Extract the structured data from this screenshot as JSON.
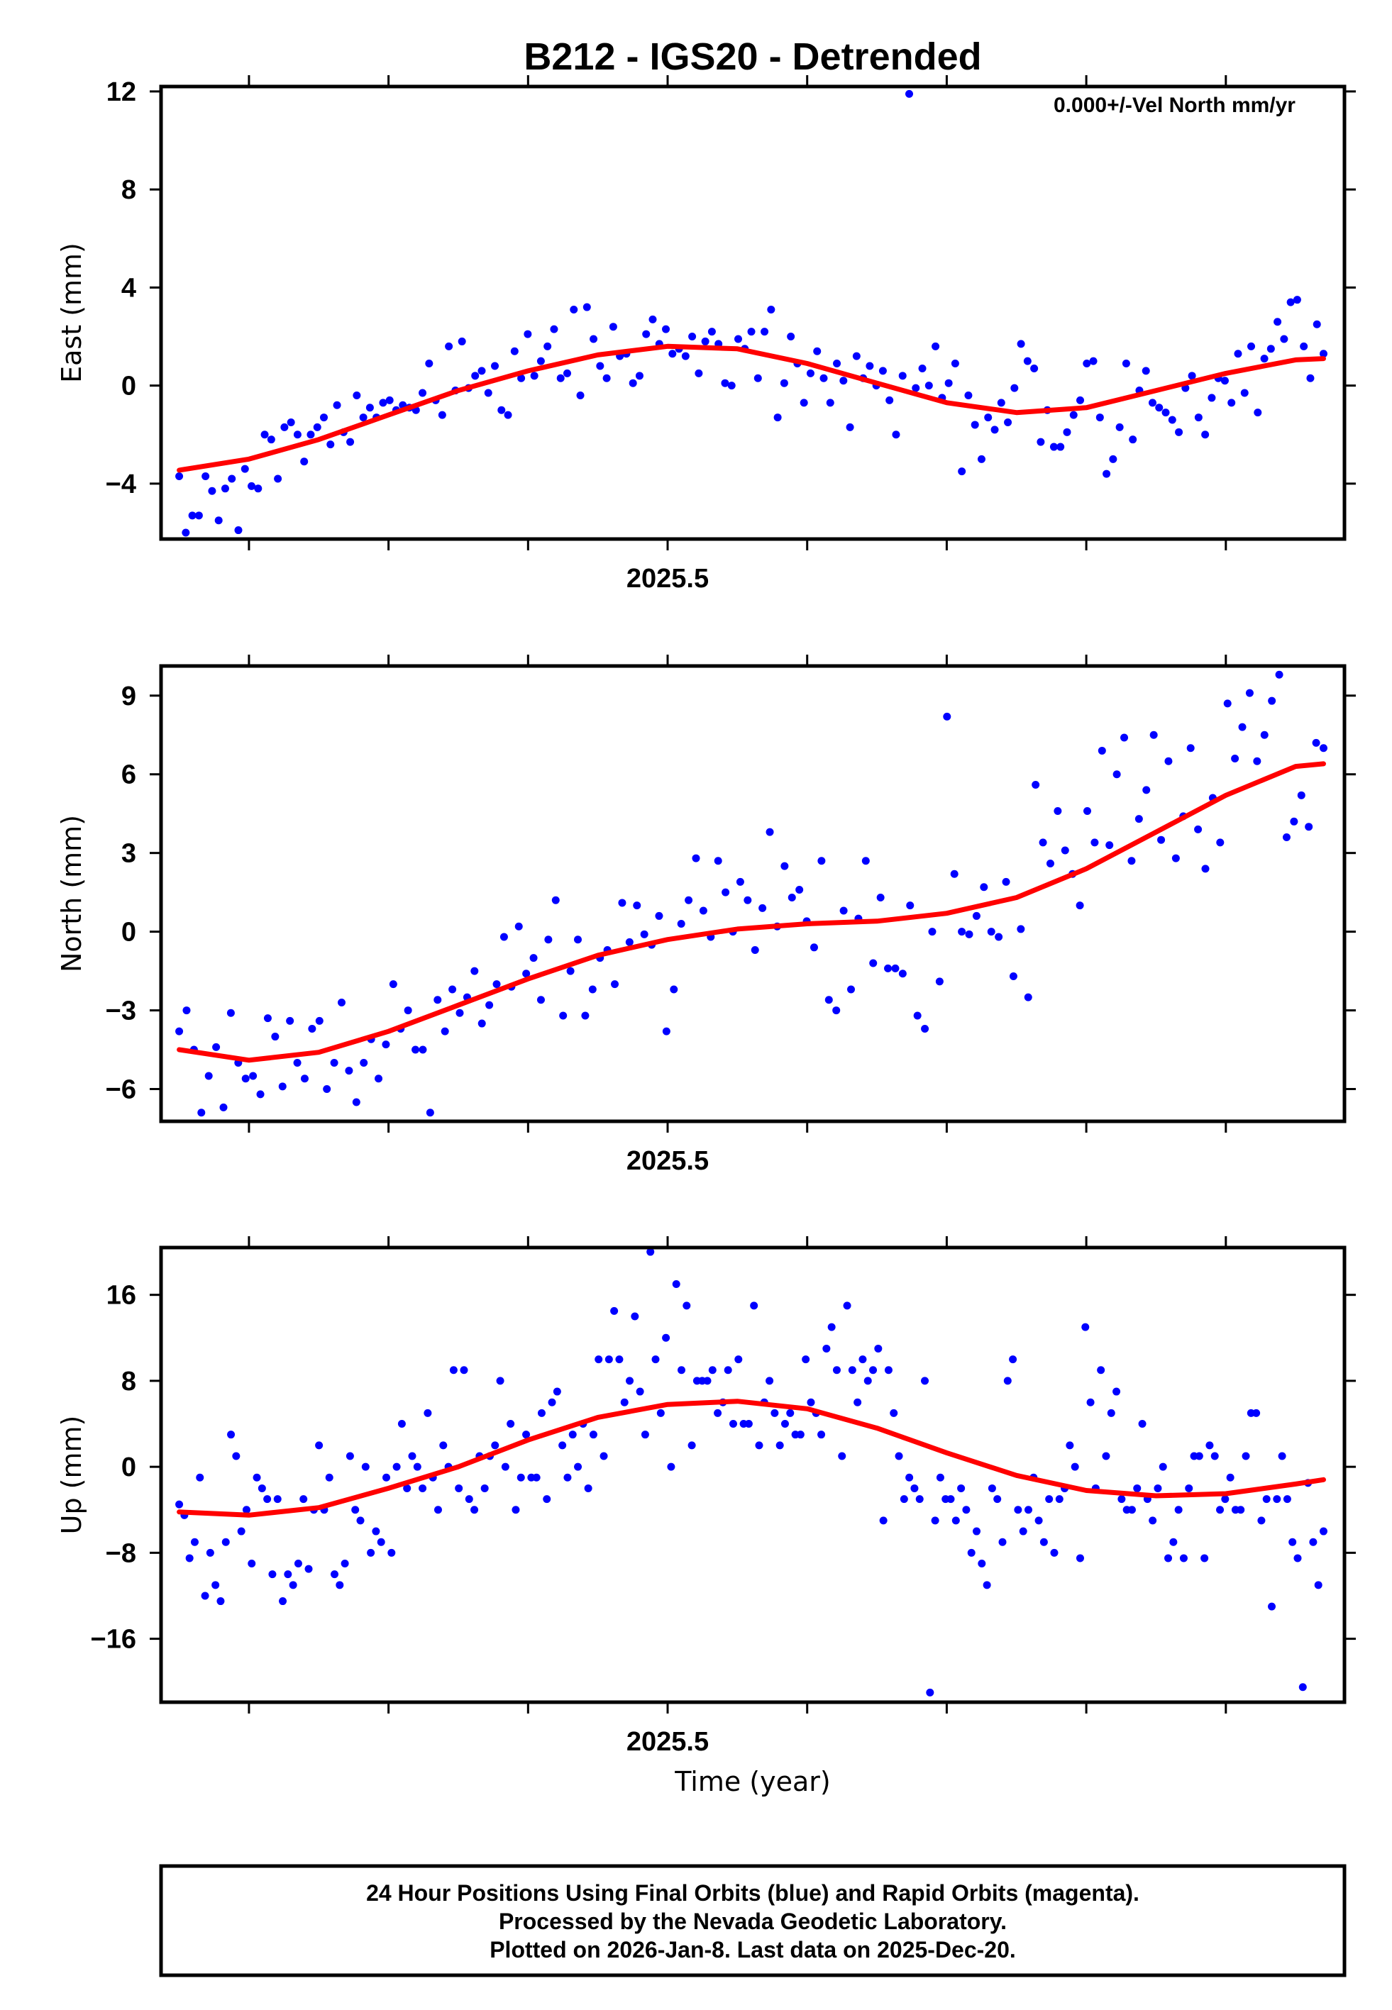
{
  "title": "B212 - IGS20 - Detrended",
  "annotation": "0.000+/-Vel North mm/yr",
  "xlabel": "Time (year)",
  "footer": {
    "line1": "24 Hour Positions Using Final Orbits (blue) and Rapid Orbits (magenta).",
    "line2": "Processed by the Nevada Geodetic Laboratory.",
    "line3": "Plotted on 2026-Jan-8. Last data on 2025-Dec-20."
  },
  "colors": {
    "points": "#0000ff",
    "model": "#ff0000",
    "frame": "#000000"
  },
  "chart_data": [
    {
      "type": "scatter",
      "name": "east",
      "ylabel": "East (mm)",
      "xlim": [
        2025.137,
        2025.985
      ],
      "ylim": [
        -6.26,
        12.2
      ],
      "xticks": [
        2025.2,
        2025.3,
        2025.4,
        2025.5,
        2025.6,
        2025.7,
        2025.8,
        2025.9
      ],
      "xtick_labels": [
        {
          "value": 2025.5,
          "label": "2025.5"
        }
      ],
      "yticks": [
        {
          "value": 12,
          "label": "12"
        },
        {
          "value": 8,
          "label": "8"
        },
        {
          "value": 4,
          "label": "4"
        },
        {
          "value": 0,
          "label": "0"
        },
        {
          "value": -4,
          "label": "-4"
        }
      ],
      "series_points": {
        "name": "Final Orbits",
        "x_start": 2025.15,
        "x_end": 2025.97,
        "values": [
          -3.7,
          -6.0,
          -5.3,
          -5.3,
          -3.7,
          -4.3,
          -5.5,
          -4.2,
          -3.8,
          -5.9,
          -3.4,
          -4.1,
          -4.2,
          -2.0,
          -2.2,
          -3.8,
          -1.7,
          -1.5,
          -2.0,
          -3.1,
          -2.0,
          -1.7,
          -1.3,
          -2.4,
          -0.8,
          -1.9,
          -2.3,
          -0.4,
          -1.3,
          -0.9,
          -1.3,
          -0.7,
          -0.6,
          -1.0,
          -0.8,
          -0.9,
          -1.0,
          -0.3,
          0.9,
          -0.6,
          -1.2,
          1.6,
          -0.2,
          1.8,
          -0.1,
          0.4,
          0.6,
          -0.3,
          0.8,
          -1.0,
          -1.2,
          1.4,
          0.3,
          2.1,
          0.4,
          1.0,
          1.6,
          2.3,
          0.3,
          0.5,
          3.1,
          -0.4,
          3.2,
          1.9,
          0.8,
          0.3,
          2.4,
          1.2,
          1.3,
          0.1,
          0.4,
          2.1,
          2.7,
          1.7,
          2.3,
          1.3,
          1.5,
          1.2,
          2.0,
          0.5,
          1.8,
          2.2,
          1.7,
          0.1,
          0.0,
          1.9,
          1.5,
          2.2,
          0.3,
          2.2,
          3.1,
          -1.3,
          0.1,
          2.0,
          0.9,
          -0.7,
          0.5,
          1.4,
          0.3,
          -0.7,
          0.9,
          0.2,
          -1.7,
          1.2,
          0.3,
          0.8,
          0.0,
          0.6,
          -0.6,
          -2.0,
          0.4,
          11.9,
          -0.1,
          0.7,
          0.0,
          1.6,
          -0.5,
          0.1,
          0.9,
          -3.5,
          -0.4,
          -1.6,
          -3.0,
          -1.3,
          -1.8,
          -0.7,
          -1.5,
          -0.1,
          1.7,
          1.0,
          0.7,
          -2.3,
          -1.0,
          -2.5,
          -2.5,
          -1.9,
          -1.2,
          -0.6,
          0.9,
          1.0,
          -1.3,
          -3.6,
          -3.0,
          -1.7,
          0.9,
          -2.2,
          -0.2,
          0.6,
          -0.7,
          -0.9,
          -1.1,
          -1.4,
          -1.9,
          -0.1,
          0.4,
          -1.3,
          -2.0,
          -0.5,
          0.3,
          0.2,
          -0.7,
          1.3,
          -0.3,
          1.6,
          -1.1,
          1.1,
          1.5,
          2.6,
          1.9,
          3.4,
          3.5,
          1.6,
          0.3,
          2.5,
          1.3
        ]
      },
      "series_model": {
        "name": "Model fit",
        "x": [
          2025.15,
          2025.2,
          2025.25,
          2025.3,
          2025.35,
          2025.4,
          2025.45,
          2025.5,
          2025.55,
          2025.6,
          2025.65,
          2025.7,
          2025.75,
          2025.8,
          2025.85,
          2025.9,
          2025.95,
          2025.97
        ],
        "y": [
          -3.45,
          -3.0,
          -2.2,
          -1.2,
          -0.2,
          0.6,
          1.25,
          1.6,
          1.5,
          0.9,
          0.1,
          -0.7,
          -1.1,
          -0.9,
          -0.2,
          0.5,
          1.05,
          1.1
        ]
      }
    },
    {
      "type": "scatter",
      "name": "north",
      "ylabel": "North (mm)",
      "xlim": [
        2025.137,
        2025.985
      ],
      "ylim": [
        -7.23,
        10.13
      ],
      "xticks": [
        2025.2,
        2025.3,
        2025.4,
        2025.5,
        2025.6,
        2025.7,
        2025.8,
        2025.9
      ],
      "xtick_labels": [
        {
          "value": 2025.5,
          "label": "2025.5"
        }
      ],
      "yticks": [
        {
          "value": 9,
          "label": "9"
        },
        {
          "value": 6,
          "label": "6"
        },
        {
          "value": 3,
          "label": "3"
        },
        {
          "value": 0,
          "label": "0"
        },
        {
          "value": -3,
          "label": "-3"
        },
        {
          "value": -6,
          "label": "-6"
        }
      ],
      "series_points": {
        "name": "Final Orbits",
        "x_start": 2025.15,
        "x_end": 2025.97,
        "values": [
          -3.8,
          -3.0,
          -4.5,
          -6.9,
          -5.5,
          -4.4,
          -6.7,
          -3.1,
          -5.0,
          -5.6,
          -5.5,
          -6.2,
          -3.3,
          -4.0,
          -5.9,
          -3.4,
          -5.0,
          -5.6,
          -3.7,
          -3.4,
          -6.0,
          -5.0,
          -2.7,
          -5.3,
          -6.5,
          -5.0,
          -4.1,
          -5.6,
          -4.3,
          -2.0,
          -3.7,
          -3.0,
          -4.5,
          -4.5,
          -6.9,
          -2.6,
          -3.8,
          -2.2,
          -3.1,
          -2.5,
          -1.5,
          -3.5,
          -2.8,
          -2.0,
          -0.2,
          -2.1,
          0.2,
          -1.6,
          -1.0,
          -2.6,
          -0.3,
          1.2,
          -3.2,
          -1.5,
          -0.3,
          -3.2,
          -2.2,
          -1.0,
          -0.7,
          -2.0,
          1.1,
          -0.4,
          1.0,
          -0.1,
          -0.5,
          0.6,
          -3.8,
          -2.2,
          0.3,
          1.2,
          2.8,
          0.8,
          -0.2,
          2.7,
          1.5,
          0.0,
          1.9,
          1.2,
          -0.7,
          0.9,
          3.8,
          0.2,
          2.5,
          1.3,
          1.6,
          0.4,
          -0.6,
          2.7,
          -2.6,
          -3.0,
          0.8,
          -2.2,
          0.5,
          2.7,
          -1.2,
          1.3,
          -1.4,
          -1.4,
          -1.6,
          1.0,
          -3.2,
          -3.7,
          0.0,
          -1.9,
          8.2,
          2.2,
          0.0,
          -0.1,
          0.6,
          1.7,
          0.0,
          -0.2,
          1.9,
          -1.7,
          0.1,
          -2.5,
          5.6,
          3.4,
          2.6,
          4.6,
          3.1,
          2.2,
          1.0,
          4.6,
          3.4,
          6.9,
          3.3,
          6.0,
          7.4,
          2.7,
          4.3,
          5.4,
          7.5,
          3.5,
          6.5,
          2.8,
          4.4,
          7.0,
          3.9,
          2.4,
          5.1,
          3.4,
          8.7,
          6.6,
          7.8,
          9.1,
          6.5,
          7.5,
          8.8,
          9.8,
          3.6,
          4.2,
          5.2,
          4.0,
          7.2,
          7.0
        ]
      },
      "series_model": {
        "name": "Model fit",
        "x": [
          2025.15,
          2025.2,
          2025.25,
          2025.3,
          2025.35,
          2025.4,
          2025.45,
          2025.5,
          2025.55,
          2025.6,
          2025.65,
          2025.7,
          2025.75,
          2025.8,
          2025.85,
          2025.9,
          2025.95,
          2025.97
        ],
        "y": [
          -4.5,
          -4.9,
          -4.6,
          -3.8,
          -2.8,
          -1.8,
          -0.9,
          -0.3,
          0.1,
          0.3,
          0.4,
          0.7,
          1.3,
          2.4,
          3.8,
          5.2,
          6.3,
          6.4
        ]
      }
    },
    {
      "type": "scatter",
      "name": "up",
      "ylabel": "Up (mm)",
      "xlim": [
        2025.137,
        2025.985
      ],
      "ylim": [
        -21.9,
        20.4
      ],
      "xticks": [
        2025.2,
        2025.3,
        2025.4,
        2025.5,
        2025.6,
        2025.7,
        2025.8,
        2025.9
      ],
      "xtick_labels": [
        {
          "value": 2025.5,
          "label": "2025.5"
        }
      ],
      "yticks": [
        {
          "value": 16,
          "label": "16"
        },
        {
          "value": 8,
          "label": "8"
        },
        {
          "value": 0,
          "label": "0"
        },
        {
          "value": -8,
          "label": "-8"
        },
        {
          "value": -16,
          "label": "-16"
        }
      ],
      "series_points": {
        "name": "Final Orbits",
        "x_start": 2025.15,
        "x_end": 2025.97,
        "values": [
          -3.5,
          -4.5,
          -8.5,
          -7,
          -1,
          -12,
          -8,
          -11,
          -12.5,
          -7,
          3,
          1,
          -6,
          -4,
          -9,
          -1,
          -2,
          -3,
          -10,
          -3,
          -12.5,
          -10,
          -11,
          -9,
          -3,
          -9.5,
          -4,
          2,
          -4,
          -1,
          -10,
          -11,
          -9,
          1,
          -4,
          -5,
          0,
          -8,
          -6,
          -7,
          -1,
          -8,
          0,
          4,
          -2,
          1,
          0,
          -2,
          5,
          -1,
          -4,
          2,
          0,
          9,
          -2,
          9,
          -3,
          -4,
          1,
          -2,
          1,
          2,
          8,
          0,
          4,
          -4,
          -1,
          3,
          -1,
          -1,
          5,
          -3,
          6,
          7,
          2,
          -1,
          3,
          0,
          4,
          -2,
          3,
          10,
          1,
          10,
          14.5,
          10,
          6,
          8,
          14,
          7,
          3,
          20,
          10,
          5,
          12,
          0,
          17,
          9,
          15,
          2,
          8,
          8,
          8,
          9,
          5,
          6,
          9,
          4,
          10,
          4,
          4,
          15,
          2,
          6,
          8,
          5,
          2,
          4,
          5,
          3,
          3,
          10,
          6,
          5,
          3,
          11,
          13,
          9,
          1,
          15,
          9,
          6,
          10,
          8,
          9,
          11,
          -5,
          9,
          5,
          1,
          -3,
          -1,
          -2,
          -3,
          8,
          -21,
          -5,
          -1,
          -3,
          -3,
          -5,
          -2,
          -4,
          -8,
          -6,
          -9,
          -11,
          -2,
          -3,
          -7,
          8,
          10,
          -4,
          -6,
          -4,
          -1,
          -5,
          -7,
          -3,
          -8,
          -3,
          -2,
          2,
          0,
          -8.5,
          13,
          6,
          -2,
          9,
          1,
          5,
          7,
          -3,
          -4,
          -4,
          -2,
          4,
          -3,
          -5,
          -2,
          0,
          -8.5,
          -7,
          -4,
          -8.5,
          -2,
          1,
          1,
          -8.5,
          2,
          1,
          -4,
          -3,
          -1,
          -4,
          -4,
          1,
          5,
          5,
          -5,
          -3,
          -13,
          -3,
          1,
          -3,
          -7,
          -8.5,
          -20.5,
          -1.5,
          -7,
          -11,
          -6
        ]
      },
      "series_model": {
        "name": "Model fit",
        "x": [
          2025.15,
          2025.2,
          2025.25,
          2025.3,
          2025.35,
          2025.4,
          2025.45,
          2025.5,
          2025.55,
          2025.6,
          2025.65,
          2025.7,
          2025.75,
          2025.8,
          2025.85,
          2025.9,
          2025.95,
          2025.97
        ],
        "y": [
          -4.2,
          -4.5,
          -3.8,
          -2.0,
          0.0,
          2.5,
          4.6,
          5.8,
          6.1,
          5.4,
          3.6,
          1.3,
          -0.8,
          -2.2,
          -2.7,
          -2.5,
          -1.6,
          -1.2
        ]
      }
    }
  ]
}
